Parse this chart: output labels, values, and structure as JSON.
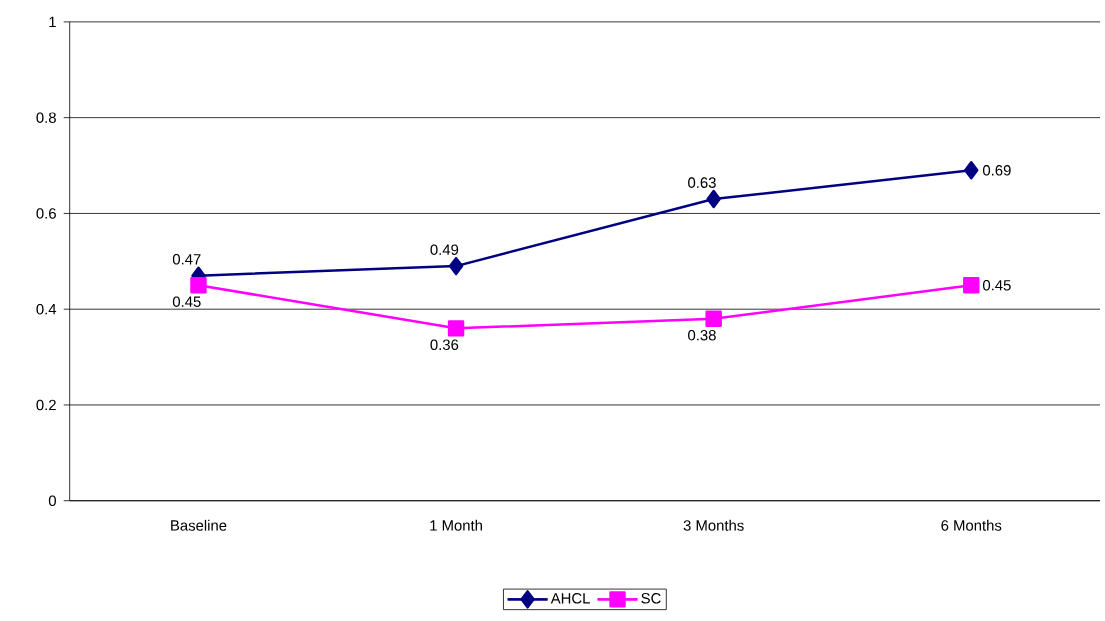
{
  "chart_data": {
    "type": "line",
    "categories": [
      "Baseline",
      "1 Month",
      "3 Months",
      "6 Months"
    ],
    "series": [
      {
        "name": "AHCL",
        "color": "#000080",
        "marker": "diamond",
        "values": [
          0.47,
          0.49,
          0.63,
          0.69
        ]
      },
      {
        "name": "SC",
        "color": "#ff00ff",
        "marker": "square",
        "values": [
          0.45,
          0.36,
          0.38,
          0.45
        ]
      }
    ],
    "ylim": [
      0,
      1
    ],
    "yticks": [
      0,
      0.2,
      0.4,
      0.6,
      0.8,
      1
    ],
    "grid": "y",
    "legend": "bottom",
    "data_labels": true,
    "line_style": "solid"
  }
}
